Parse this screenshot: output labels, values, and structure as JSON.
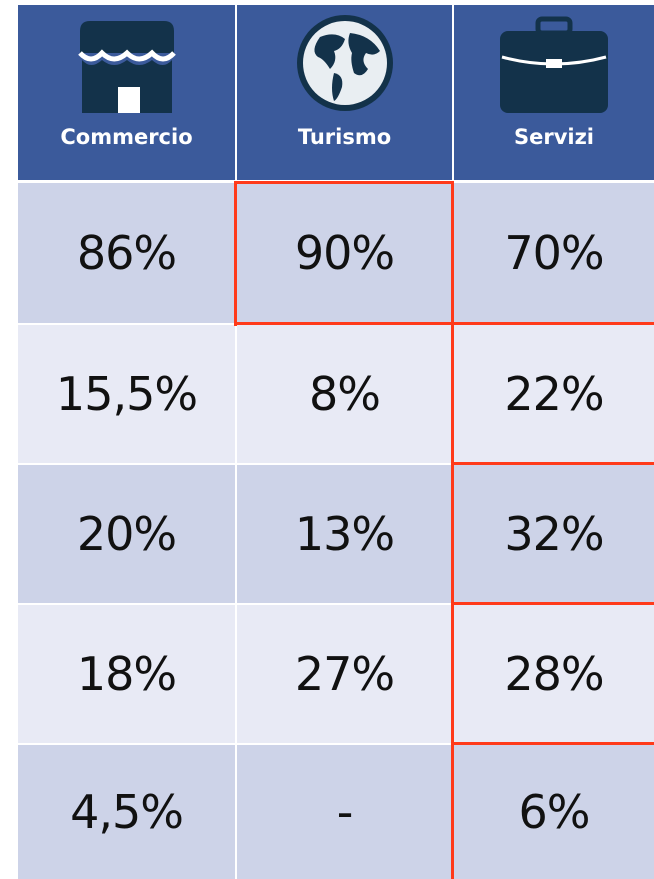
{
  "table": {
    "headers": [
      "Commercio",
      "Turismo",
      "Servizi"
    ],
    "rows": [
      [
        "86%",
        "90%",
        "70%"
      ],
      [
        "15,5%",
        "8%",
        "22%"
      ],
      [
        "20%",
        "13%",
        "32%"
      ],
      [
        "18%",
        "27%",
        "28%"
      ],
      [
        "4,5%",
        "-",
        "6%"
      ]
    ]
  }
}
